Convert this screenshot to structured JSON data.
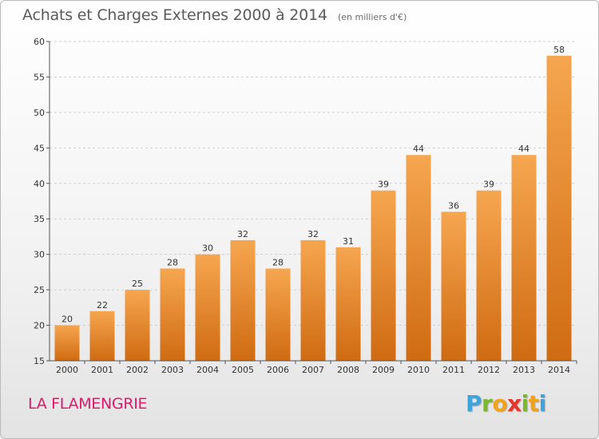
{
  "header": {
    "title": "Achats et Charges Externes 2000 à 2014",
    "unit": "(en milliers d'€)"
  },
  "footer": {
    "commune": "LA FLAMENGRIE",
    "logo_letters": [
      "P",
      "r",
      "o",
      "x",
      "i",
      "t",
      "i"
    ],
    "logo_colors": [
      "#3fa3dc",
      "#7ab929",
      "#f0a21b",
      "#e5362c",
      "#7ab929",
      "#f0a21b",
      "#3fa3dc"
    ]
  },
  "colors": {
    "bar_top": "#f6a650",
    "bar_bottom": "#cf6b12",
    "grid": "#d0d0d0",
    "axis": "#555555"
  },
  "chart_data": {
    "type": "bar",
    "title": "Achats et Charges Externes 2000 à 2014",
    "subtitle": "(en milliers d'€)",
    "xlabel": "",
    "ylabel": "",
    "categories": [
      "2000",
      "2001",
      "2002",
      "2003",
      "2004",
      "2005",
      "2006",
      "2007",
      "2008",
      "2009",
      "2010",
      "2011",
      "2012",
      "2013",
      "2014"
    ],
    "values": [
      20,
      22,
      25,
      28,
      30,
      32,
      28,
      32,
      31,
      39,
      44,
      36,
      39,
      44,
      58
    ],
    "ylim": [
      15,
      60
    ],
    "yticks": [
      15,
      20,
      25,
      30,
      35,
      40,
      45,
      50,
      55,
      60
    ],
    "grid": "horizontal-dashed",
    "legend": "none"
  }
}
